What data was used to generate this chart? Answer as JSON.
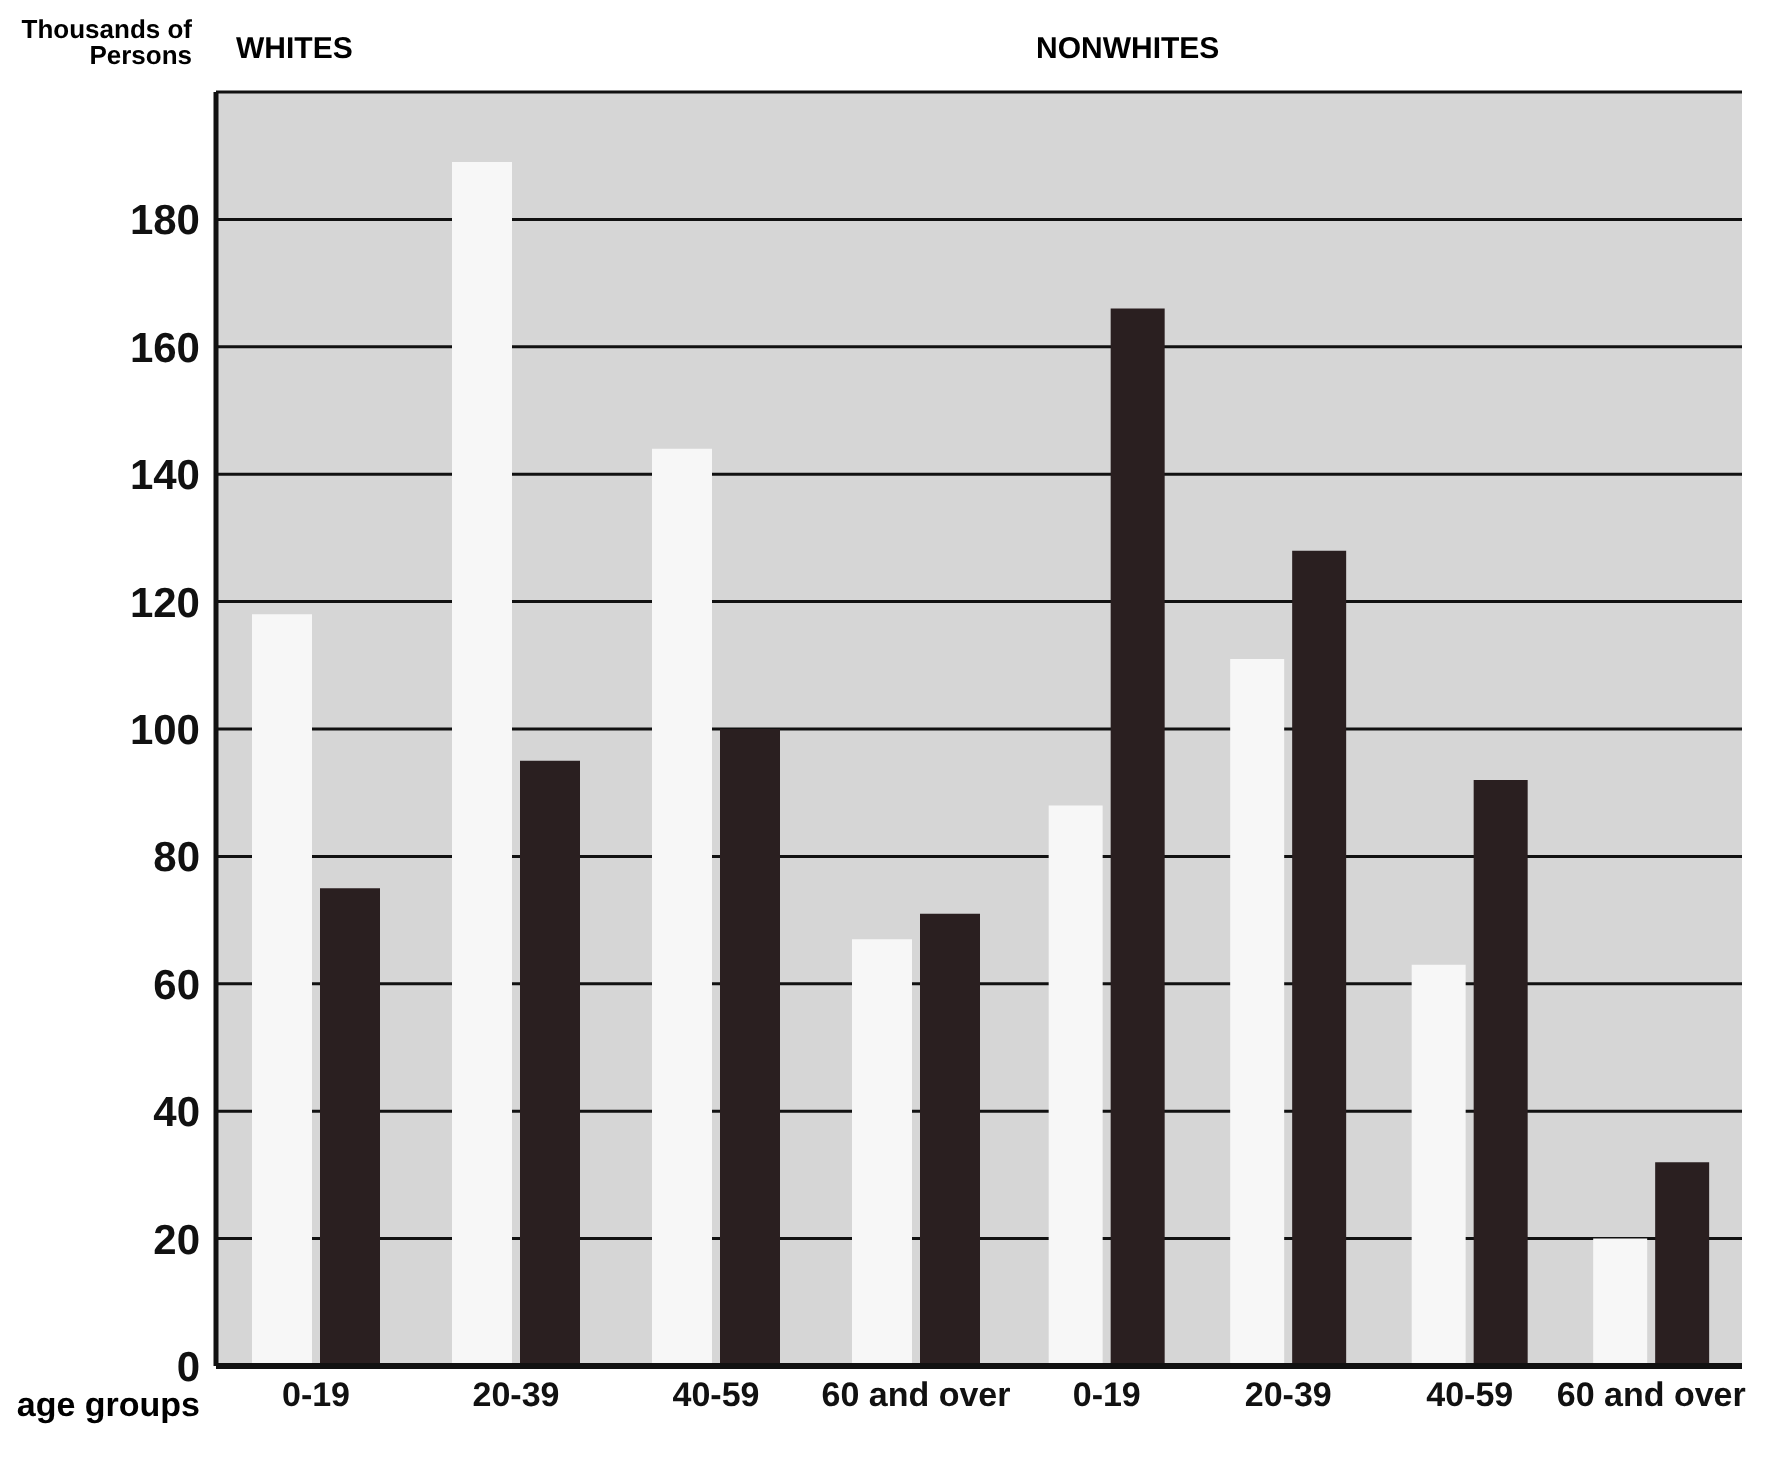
{
  "chart_data": [
    {
      "type": "bar",
      "title": "WHITES",
      "ylabel": "Thousands of Persons",
      "xlabel": "age groups",
      "categories": [
        "0-19",
        "20-39",
        "40-59",
        "60 and over"
      ],
      "series": [
        {
          "color": "#f7f7f7",
          "values": [
            118,
            189,
            144,
            67
          ]
        },
        {
          "color": "#2a1f20",
          "values": [
            75,
            95,
            100,
            71
          ]
        }
      ],
      "ylim": [
        0,
        200
      ],
      "yticks": [
        0,
        20,
        40,
        60,
        80,
        100,
        120,
        140,
        160,
        180,
        {
          "value": 200,
          "label": null
        }
      ],
      "grid": "y"
    },
    {
      "type": "bar",
      "title": "NONWHITES",
      "categories": [
        "0-19",
        "20-39",
        "40-59",
        "60 and over"
      ],
      "series": [
        {
          "color": "#f7f7f7",
          "values": [
            88,
            111,
            63,
            20
          ]
        },
        {
          "color": "#2a1f20",
          "values": [
            166,
            128,
            92,
            32
          ]
        }
      ],
      "ylim": [
        0,
        200
      ],
      "yticks": [
        0,
        20,
        40,
        60,
        80,
        100,
        120,
        140,
        160,
        180,
        {
          "value": 200,
          "label": null
        }
      ],
      "grid": "y",
      "tick_labels": "x"
    }
  ]
}
